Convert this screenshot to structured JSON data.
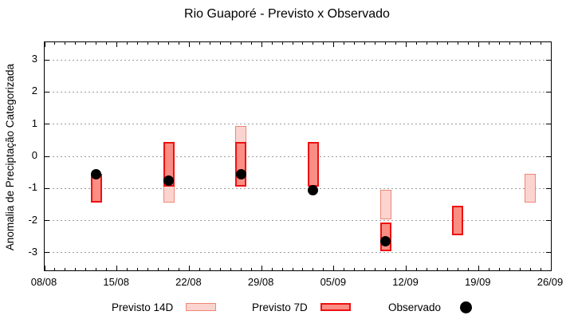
{
  "chart_data": {
    "type": "bar",
    "subtype": "range-bars-with-scatter-overlay",
    "title": "Rio Guaporé - Previsto x Observado",
    "xlabel": "",
    "ylabel": "Anomalia de Preciptação Categorizada",
    "ylim": [
      -3.55,
      3.55
    ],
    "yticks": [
      3,
      2,
      1,
      0,
      -1,
      -2,
      -3
    ],
    "grid": "dotted gray horizontal lines at integer yticks",
    "x_axis": {
      "start_label": "08/08",
      "end_label": "26/09",
      "total_days": 49,
      "tick_labels": [
        "08/08",
        "15/08",
        "22/08",
        "29/08",
        "05/09",
        "12/09",
        "19/09",
        "26/09"
      ],
      "tick_days": [
        0,
        7,
        14,
        21,
        28,
        35,
        42,
        49
      ],
      "minor_tick_interval_days": 1
    },
    "series": [
      {
        "name": "Previsto 14D",
        "type": "range-bar",
        "fill": "#fbd4cf",
        "stroke": "#f08575",
        "stroke_width": 1.5,
        "points": [
          {
            "date": "20/08",
            "day": 12,
            "high": 0.45,
            "low": -1.45
          },
          {
            "date": "27/08",
            "day": 19,
            "high": 0.95,
            "low": -0.95
          },
          {
            "date": "10/09",
            "day": 33,
            "high": -1.05,
            "low": -1.95
          },
          {
            "date": "24/09",
            "day": 47,
            "high": -0.55,
            "low": -1.45
          }
        ]
      },
      {
        "name": "Previsto 7D",
        "type": "range-bar",
        "fill": "#fa8e85",
        "stroke": "#ee1111",
        "stroke_width": 2,
        "points": [
          {
            "date": "13/08",
            "day": 5,
            "high": -0.55,
            "low": -1.45
          },
          {
            "date": "20/08",
            "day": 12,
            "high": 0.45,
            "low": -0.95
          },
          {
            "date": "27/08",
            "day": 19,
            "high": 0.45,
            "low": -0.95
          },
          {
            "date": "03/09",
            "day": 26,
            "high": 0.45,
            "low": -0.95
          },
          {
            "date": "10/09",
            "day": 33,
            "high": -2.05,
            "low": -2.95
          },
          {
            "date": "17/09",
            "day": 40,
            "high": -1.55,
            "low": -2.45
          }
        ]
      },
      {
        "name": "Observado",
        "type": "scatter",
        "color": "#000000",
        "points": [
          {
            "date": "13/08",
            "day": 5,
            "value": -0.55
          },
          {
            "date": "20/08",
            "day": 12,
            "value": -0.75
          },
          {
            "date": "27/08",
            "day": 19,
            "value": -0.55
          },
          {
            "date": "03/09",
            "day": 26,
            "value": -1.05
          },
          {
            "date": "10/09",
            "day": 33,
            "value": -2.65
          }
        ]
      }
    ],
    "legend": {
      "position": "below-chart",
      "items": [
        {
          "label": "Previsto 14D",
          "swatch": "light-pink-box",
          "fill": "#fbd4cf",
          "stroke": "#f08575"
        },
        {
          "label": "Previsto 7D",
          "swatch": "red-box",
          "fill": "#fa8e85",
          "stroke": "#ee1111"
        },
        {
          "label": "Observado",
          "swatch": "black-dot",
          "fill": "#000000"
        }
      ]
    }
  }
}
